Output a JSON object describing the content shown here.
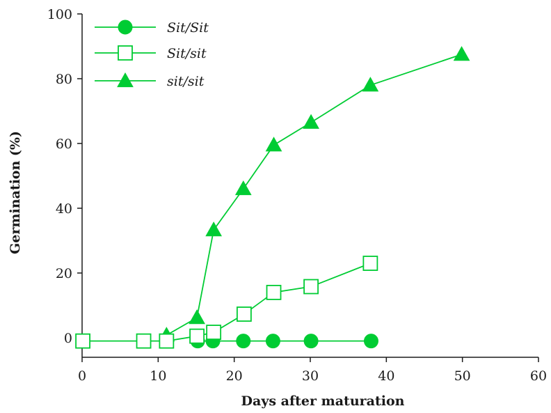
{
  "chart_data": {
    "type": "line",
    "title": "",
    "xlabel": "Days after maturation",
    "ylabel": "Germination (%)",
    "xlim": [
      0,
      60
    ],
    "ylim": [
      -5,
      100
    ],
    "x_ticks": [
      0,
      10,
      20,
      30,
      40,
      50,
      60
    ],
    "y_ticks": [
      0,
      20,
      40,
      60,
      80,
      100
    ],
    "grid": false,
    "legend_position": "top-left",
    "line_color": "#00cc33",
    "series": [
      {
        "name": "Sit/Sit",
        "marker": "filled-circle",
        "x": [
          15.2,
          17.2,
          21.2,
          25.1,
          30.1,
          38.0
        ],
        "y": [
          -1,
          -1,
          -1,
          -1,
          -1,
          -1
        ]
      },
      {
        "name": "Sit/sit",
        "marker": "open-square",
        "x": [
          0.1,
          8.1,
          11.1,
          15.1,
          17.3,
          21.3,
          25.2,
          30.1,
          37.9
        ],
        "y": [
          -1,
          -1,
          -1,
          0.5,
          1.7,
          7.3,
          14.0,
          15.8,
          23.0
        ]
      },
      {
        "name": "sit/sit",
        "marker": "filled-triangle",
        "x": [
          11.1,
          15.1,
          17.3,
          21.2,
          25.2,
          30.1,
          37.9,
          49.9
        ],
        "y": [
          0.8,
          6.2,
          33.3,
          46.0,
          59.5,
          66.5,
          78.0,
          87.5
        ]
      }
    ]
  }
}
